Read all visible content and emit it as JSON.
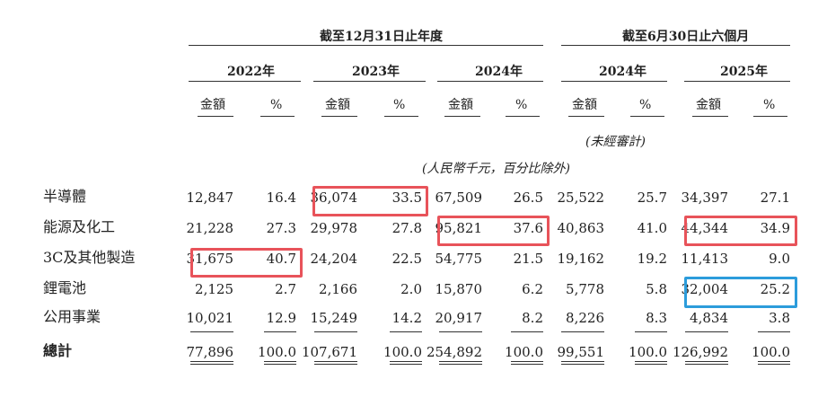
{
  "header": {
    "period_fy": "截至12月31日止年度",
    "period_6m": "截至6月30日止六個月",
    "years": [
      "2022年",
      "2023年",
      "2024年",
      "2024年",
      "2025年"
    ],
    "col_amount": "金額",
    "col_pct": "%",
    "unaudited": "(未經審計)",
    "unit_note": "(人民幣千元，百分比除外)"
  },
  "rows": [
    {
      "label": "半導體",
      "values": [
        "12,847",
        "16.4",
        "36,074",
        "33.5",
        "67,509",
        "26.5",
        "25,522",
        "25.7",
        "34,397",
        "27.1"
      ]
    },
    {
      "label": "能源及化工",
      "values": [
        "21,228",
        "27.3",
        "29,978",
        "27.8",
        "95,821",
        "37.6",
        "40,863",
        "41.0",
        "44,344",
        "34.9"
      ]
    },
    {
      "label": "3C及其他製造",
      "values": [
        "31,675",
        "40.7",
        "24,204",
        "22.5",
        "54,775",
        "21.5",
        "19,162",
        "19.2",
        "11,413",
        "9.0"
      ]
    },
    {
      "label": "鋰電池",
      "values": [
        "2,125",
        "2.7",
        "2,166",
        "2.0",
        "15,870",
        "6.2",
        "5,778",
        "5.8",
        "32,004",
        "25.2"
      ]
    },
    {
      "label": "公用事業",
      "values": [
        "10,021",
        "12.9",
        "15,249",
        "14.2",
        "20,917",
        "8.2",
        "8,226",
        "8.3",
        "4,834",
        "3.8"
      ]
    }
  ],
  "total": {
    "label": "總計",
    "values": [
      "77,896",
      "100.0",
      "107,671",
      "100.0",
      "254,892",
      "100.0",
      "99,551",
      "100.0",
      "126,992",
      "100.0"
    ]
  },
  "highlight_colors": {
    "red": "#e8535a",
    "blue": "#2c9cdb"
  }
}
